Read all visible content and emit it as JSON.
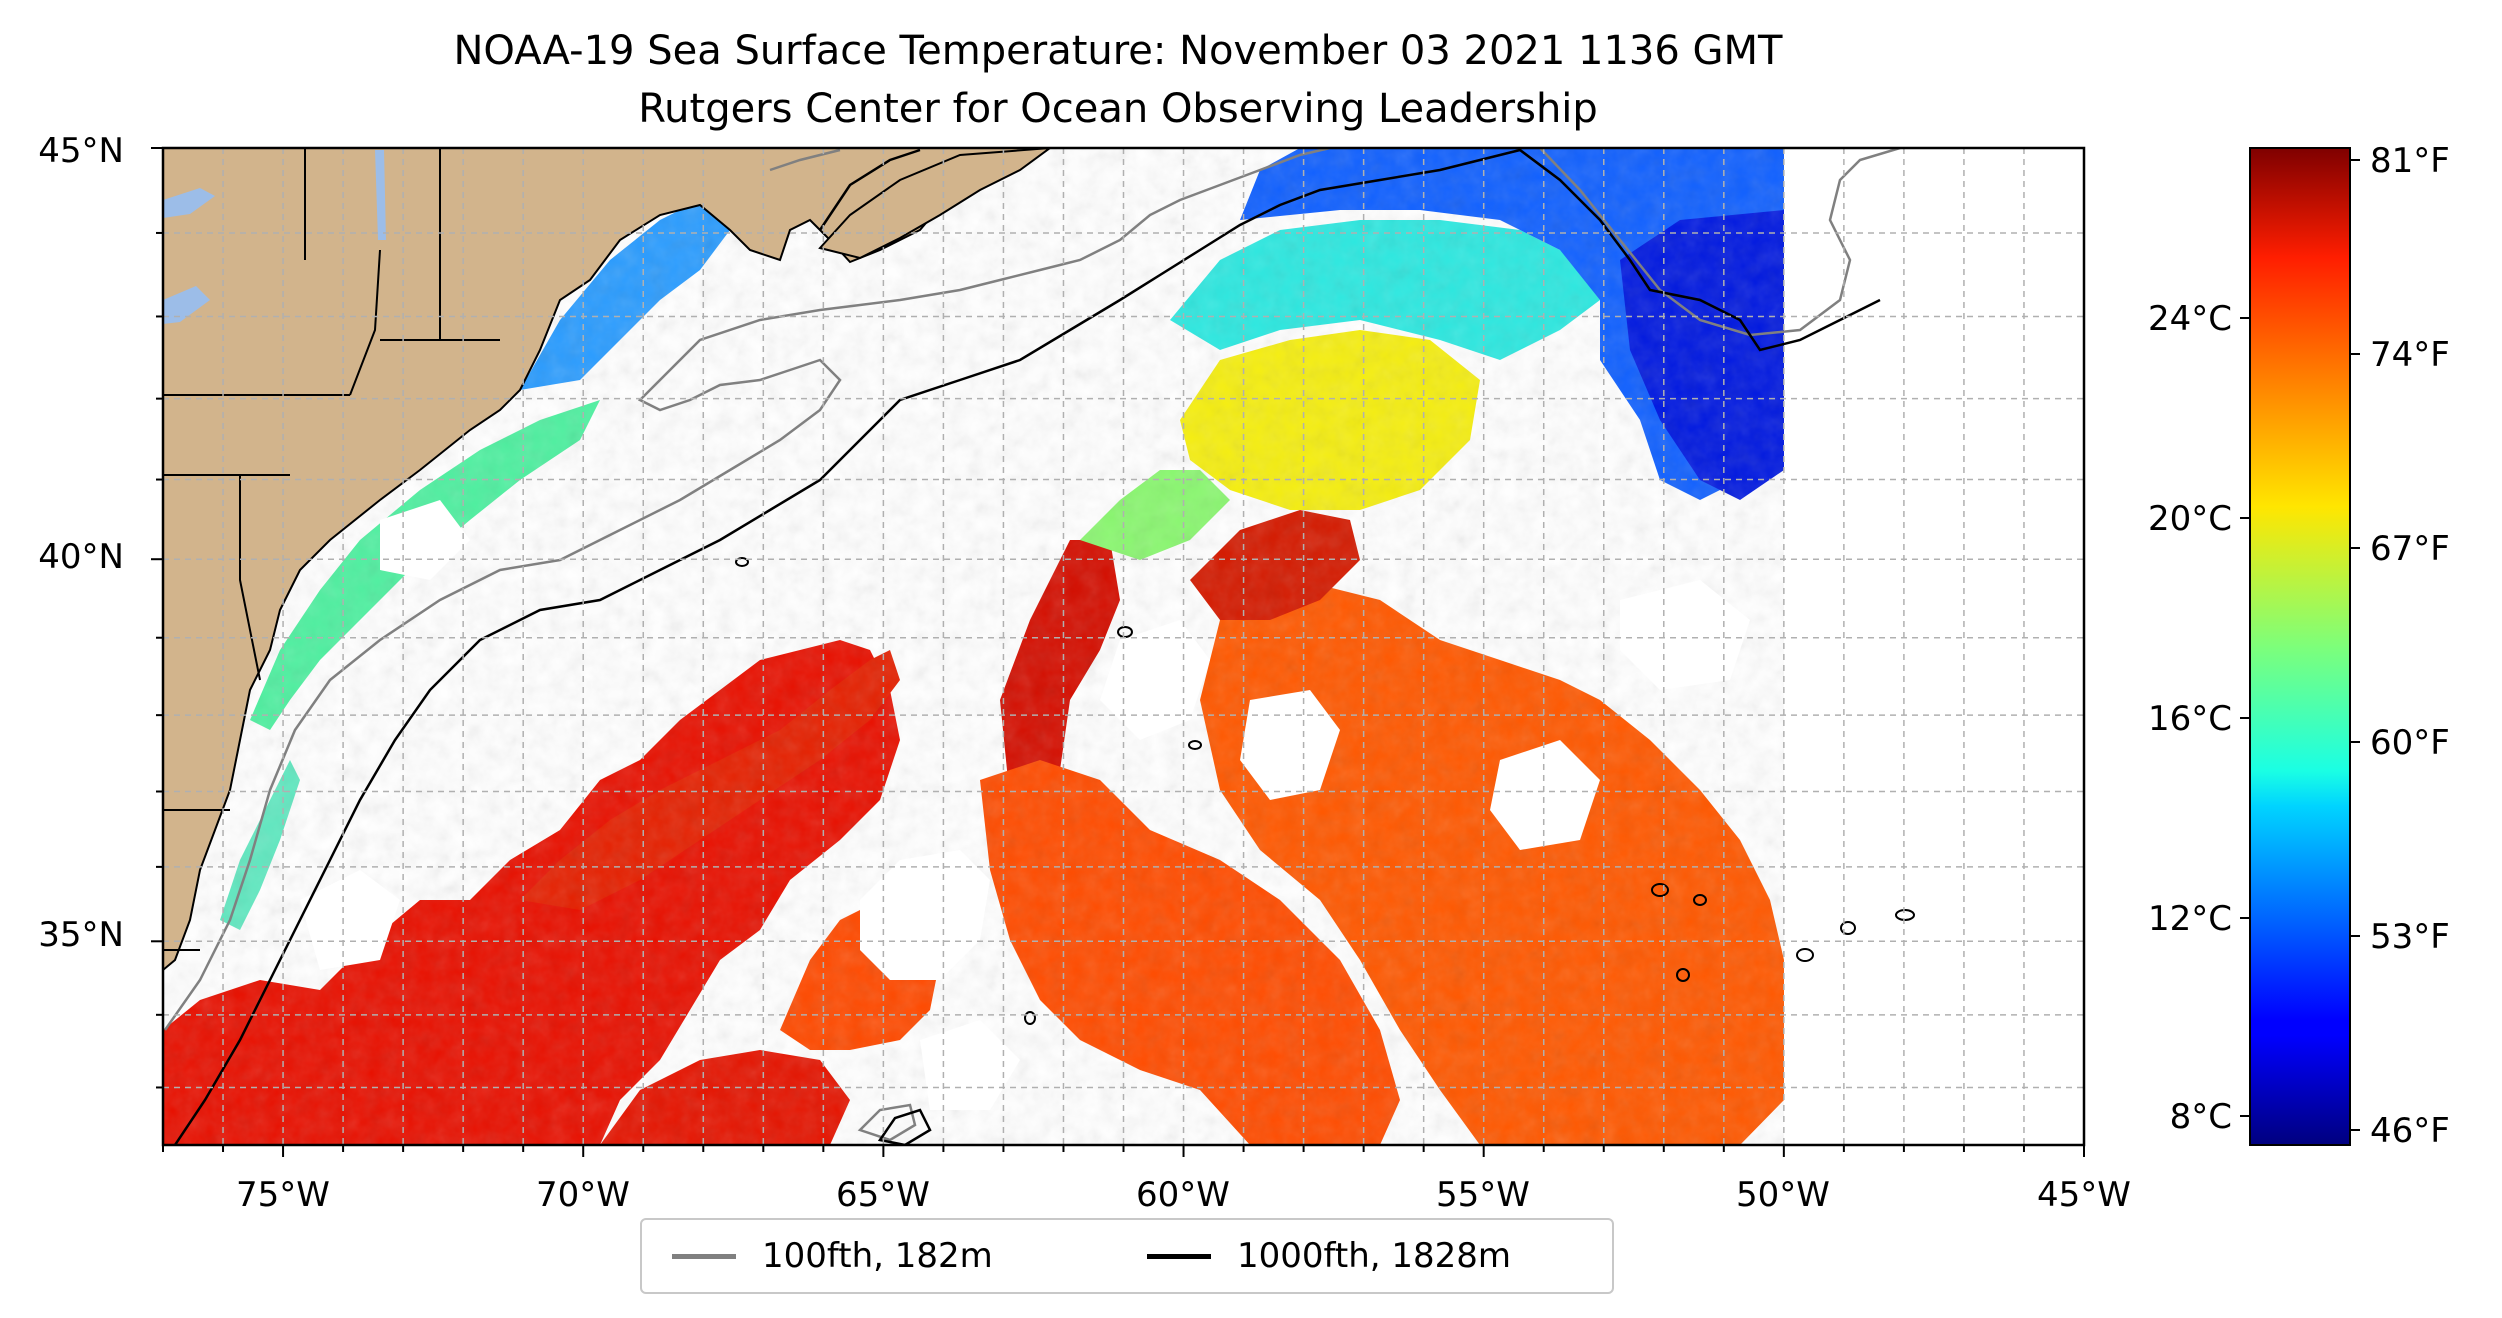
{
  "title": {
    "line1": "NOAA-19 Sea Surface Temperature: November 03 2021 1136 GMT",
    "line2": "Rutgers Center for Ocean Observing Leadership"
  },
  "map": {
    "lon_range": [
      -77,
      -45
    ],
    "lat_range": [
      32.2,
      45
    ],
    "data_east_edge_lon": -50,
    "lat_labels": [
      {
        "lat": 45,
        "label": "45°N"
      },
      {
        "lat": 40,
        "label": "40°N"
      },
      {
        "lat": 35,
        "label": "35°N"
      }
    ],
    "lon_labels": [
      {
        "lon": -75,
        "label": "75°W"
      },
      {
        "lon": -70,
        "label": "70°W"
      },
      {
        "lon": -65,
        "label": "65°W"
      },
      {
        "lon": -60,
        "label": "60°W"
      },
      {
        "lon": -55,
        "label": "55°W"
      },
      {
        "lon": -50,
        "label": "50°W"
      },
      {
        "lon": -45,
        "label": "45°W"
      }
    ],
    "grid_step_deg": 1,
    "grid": true,
    "colors": {
      "land": "#d2b48c",
      "lakes": "#9cbde8",
      "contour_100fth": "#808080",
      "contour_1000fth": "#000000"
    }
  },
  "legend": {
    "placement": "bottom-center",
    "items": [
      {
        "label": "100fth, 182m",
        "color": "#808080"
      },
      {
        "label": "1000fth, 1828m",
        "color": "#000000"
      }
    ]
  },
  "colorbar": {
    "colormap": "jet",
    "range_c": [
      7.4,
      27.4
    ],
    "celsius_ticks": [
      {
        "value": 24,
        "label": "24°C"
      },
      {
        "value": 20,
        "label": "20°C"
      },
      {
        "value": 16,
        "label": "16°C"
      },
      {
        "value": 12,
        "label": "12°C"
      },
      {
        "value": 8,
        "label": "8°C"
      }
    ],
    "fahrenheit_ticks": [
      {
        "value": 81,
        "label": "81°F"
      },
      {
        "value": 74,
        "label": "74°F"
      },
      {
        "value": 67,
        "label": "67°F"
      },
      {
        "value": 60,
        "label": "60°F"
      },
      {
        "value": 53,
        "label": "53°F"
      },
      {
        "value": 46,
        "label": "46°F"
      }
    ]
  }
}
